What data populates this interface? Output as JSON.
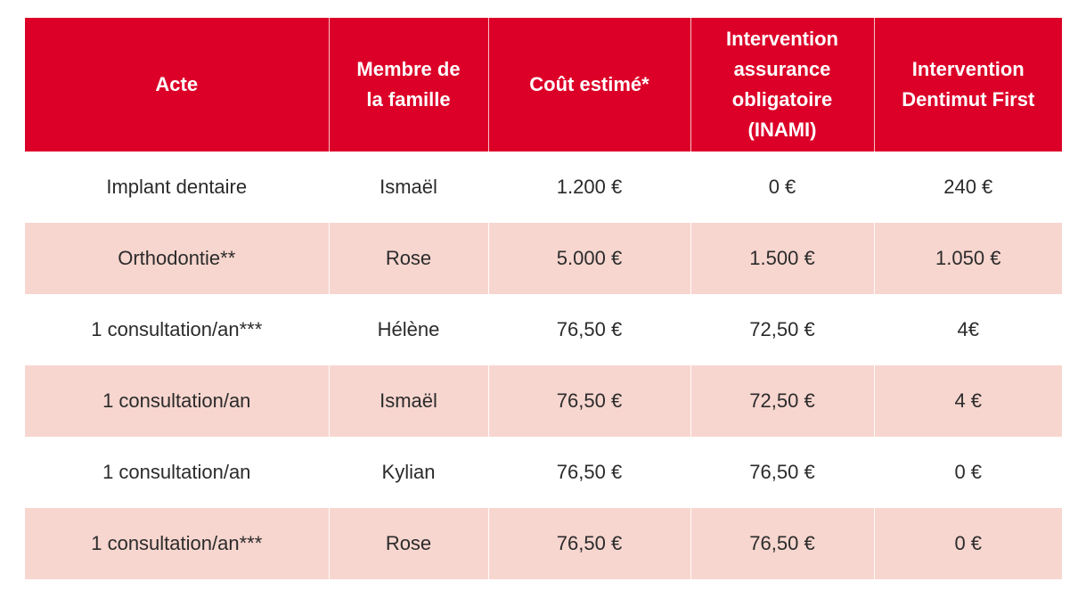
{
  "table": {
    "headers": [
      "Acte",
      "Membre de\nla famille",
      "Coût estimé*",
      "Intervention\nassurance\nobligatoire\n(INAMI)",
      "Intervention\nDentimut First"
    ],
    "rows": [
      [
        "Implant dentaire",
        "Ismaël",
        "1.200 €",
        "0 €",
        "240 €"
      ],
      [
        "Orthodontie**",
        "Rose",
        "5.000 €",
        "1.500 €",
        "1.050 €"
      ],
      [
        "1 consultation/an***",
        "Hélène",
        "76,50 €",
        "72,50 €",
        "4€"
      ],
      [
        "1 consultation/an",
        "Ismaël",
        "76,50 €",
        "72,50 €",
        "4 €"
      ],
      [
        "1 consultation/an",
        "Kylian",
        "76,50 €",
        "76,50 €",
        "0 €"
      ],
      [
        "1 consultation/an***",
        "Rose",
        "76,50 €",
        "76,50 €",
        "0 €"
      ]
    ]
  },
  "colors": {
    "header_bg": "#dc0028",
    "stripe_bg": "#f7d6cf"
  }
}
